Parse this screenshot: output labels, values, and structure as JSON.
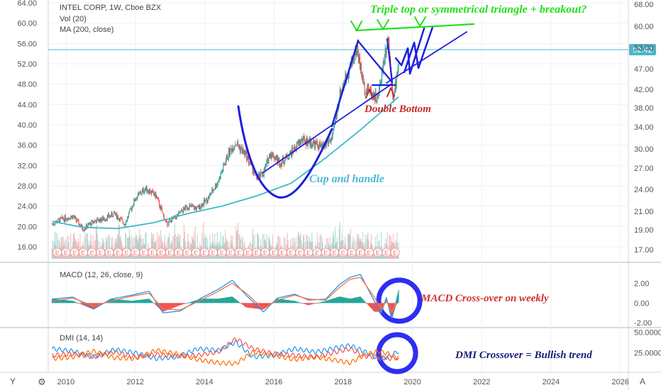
{
  "colors": {
    "up": "#26a69a",
    "down": "#ef5350",
    "ma": "#3fb8c8",
    "macd": "#2196f3",
    "signal": "#ff7043",
    "dmi_plus": "#2196f3",
    "dmi_minus": "#ff6d00",
    "dmi_adx": "#ef5350",
    "draw_blue": "#1c1fdc",
    "draw_green": "#22e01a",
    "cup_text": "#4db8d6",
    "double_bottom": "#c62828",
    "macd_anno": "#d32f2f",
    "dmi_anno": "#1a1a7a",
    "price_tag": "#4db6c8",
    "grid": "#eef0f3",
    "axis": "#d1d4dc"
  },
  "header": {
    "symbol": "INTEL CORP, 1W, Cboe BZX",
    "vol": "Vol (20)",
    "ma": "MA (200, close)"
  },
  "macd_panel": {
    "label": "MACD (12, 26, close, 9)"
  },
  "dmi_panel": {
    "label": "DMI (14, 14)"
  },
  "annotations": {
    "triple_top": "Triple top or symmetrical triangle + breakout?",
    "cup_handle": "Cup and handle",
    "double_bottom": "Double Bottom",
    "macd_cross": "MACD Cross-over on weekly",
    "dmi_cross": "DMI Crossover = Bullish trend"
  },
  "earnings_marker": "E",
  "corner": {
    "left": "Y",
    "settings": "⚙",
    "auto": "A"
  },
  "chart_data": [
    {
      "type": "line",
      "title": "INTEL CORP, 1W, Cboe BZX",
      "x_ticks": [
        "2010",
        "2012",
        "2014",
        "2016",
        "2018",
        "2020",
        "2022",
        "2024",
        "2026"
      ],
      "left_ticks": [
        "64.00",
        "60.00",
        "56.00",
        "52.00",
        "48.00",
        "44.00",
        "40.00",
        "36.00",
        "32.00",
        "28.00",
        "24.00",
        "20.00",
        "16.00"
      ],
      "right_ticks": [
        "68.00",
        "60.00",
        "53.00",
        "47.00",
        "42.00",
        "38.00",
        "34.00",
        "30.00",
        "27.00",
        "24.00",
        "21.00",
        "19.00",
        "17.00"
      ],
      "ylim": [
        13.5,
        65
      ],
      "last_price": "52.42",
      "series": [
        {
          "values_description": "weekly close",
          "x": [
            2009.6,
            2009.9,
            2010.2,
            2010.5,
            2010.8,
            2011.1,
            2011.4,
            2011.7,
            2012.0,
            2012.3,
            2012.6,
            2012.9,
            2013.2,
            2013.5,
            2013.8,
            2014.1,
            2014.4,
            2014.7,
            2014.9,
            2015.2,
            2015.5,
            2015.7,
            2015.9,
            2016.2,
            2016.5,
            2016.8,
            2017.1,
            2017.4,
            2017.7,
            2017.9,
            2018.2,
            2018.4,
            2018.6,
            2018.8,
            2019.0,
            2019.2,
            2019.3,
            2019.45,
            2019.6
          ],
          "close": [
            20.5,
            21.5,
            22.0,
            19.5,
            21.0,
            21.5,
            22.5,
            20.5,
            25.5,
            27.5,
            26.0,
            20.5,
            22.0,
            24.0,
            23.5,
            25.5,
            29.0,
            34.5,
            36.5,
            34.0,
            29.5,
            30.5,
            34.5,
            32.5,
            34.5,
            37.0,
            36.5,
            35.5,
            37.5,
            46.0,
            51.5,
            55.0,
            47.5,
            46.5,
            45.0,
            54.0,
            57.5,
            44.5,
            52.4
          ]
        },
        {
          "name": "MA (200, close)",
          "x": [
            2009.6,
            2010.5,
            2011.5,
            2012.5,
            2013.5,
            2014.5,
            2015.5,
            2016.5,
            2017.5,
            2018.5,
            2019.6
          ],
          "values": [
            21.0,
            19.8,
            19.6,
            20.7,
            22.5,
            24.0,
            26.0,
            28.5,
            33.5,
            39.0,
            45.5
          ]
        }
      ]
    },
    {
      "type": "line",
      "title": "MACD (12, 26, close, 9)",
      "right_ticks": [
        "2.00",
        "0.00",
        "-2.00"
      ],
      "ylim": [
        -2.2,
        3.4
      ],
      "series": [
        {
          "name": "MACD",
          "x": [
            2009.6,
            2010.2,
            2010.8,
            2011.3,
            2011.9,
            2012.4,
            2012.8,
            2013.3,
            2013.9,
            2014.4,
            2014.8,
            2015.2,
            2015.7,
            2016.1,
            2016.6,
            2017.0,
            2017.5,
            2017.9,
            2018.2,
            2018.5,
            2018.9,
            2019.1,
            2019.25,
            2019.4,
            2019.6
          ],
          "values": [
            0.4,
            0.6,
            -0.6,
            0.4,
            0.8,
            1.2,
            -1.0,
            -0.8,
            0.5,
            1.4,
            2.3,
            0.8,
            -0.9,
            0.5,
            0.9,
            0.3,
            0.4,
            1.9,
            2.6,
            2.9,
            0.2,
            -1.0,
            0.5,
            -1.6,
            0.8
          ]
        },
        {
          "name": "Signal",
          "x": [
            2009.6,
            2010.2,
            2010.8,
            2011.3,
            2011.9,
            2012.4,
            2012.8,
            2013.3,
            2013.9,
            2014.4,
            2014.8,
            2015.2,
            2015.7,
            2016.1,
            2016.6,
            2017.0,
            2017.5,
            2017.9,
            2018.2,
            2018.5,
            2018.9,
            2019.1,
            2019.25,
            2019.4,
            2019.6
          ],
          "values": [
            0.2,
            0.5,
            -0.3,
            0.2,
            0.7,
            1.0,
            -0.6,
            -0.7,
            0.3,
            1.2,
            2.0,
            1.0,
            -0.6,
            0.3,
            0.8,
            0.4,
            0.3,
            1.6,
            2.4,
            2.6,
            0.6,
            -0.6,
            0.2,
            -0.9,
            0.2
          ]
        }
      ]
    },
    {
      "type": "line",
      "title": "DMI (14, 14)",
      "right_ticks": [
        "50.0000",
        "25.0000"
      ],
      "ylim": [
        5,
        52
      ],
      "series": [
        {
          "name": "+DI",
          "x": [
            2009.6,
            2010.2,
            2010.8,
            2011.4,
            2012.0,
            2012.6,
            2013.2,
            2013.8,
            2014.4,
            2014.9,
            2015.4,
            2016.0,
            2016.6,
            2017.2,
            2017.8,
            2018.2,
            2018.6,
            2019.0,
            2019.3,
            2019.6
          ],
          "values": [
            30,
            27,
            20,
            29,
            25,
            18,
            20,
            30,
            28,
            38,
            20,
            22,
            30,
            26,
            31,
            34,
            27,
            18,
            20,
            27
          ]
        },
        {
          "name": "-DI",
          "x": [
            2009.6,
            2010.2,
            2010.8,
            2011.4,
            2012.0,
            2012.6,
            2013.2,
            2013.8,
            2014.4,
            2014.9,
            2015.4,
            2016.0,
            2016.6,
            2017.2,
            2017.8,
            2018.2,
            2018.6,
            2019.0,
            2019.3,
            2019.6
          ],
          "values": [
            18,
            20,
            27,
            19,
            18,
            28,
            24,
            17,
            13,
            12,
            26,
            22,
            17,
            20,
            16,
            13,
            22,
            27,
            24,
            18
          ]
        },
        {
          "name": "ADX",
          "x": [
            2009.6,
            2010.2,
            2010.8,
            2011.4,
            2012.0,
            2012.6,
            2013.2,
            2013.8,
            2014.4,
            2014.9,
            2015.4,
            2016.0,
            2016.6,
            2017.2,
            2017.8,
            2018.2,
            2018.6,
            2019.0,
            2019.3,
            2019.6
          ],
          "values": [
            22,
            24,
            20,
            26,
            20,
            23,
            21,
            22,
            26,
            42,
            30,
            24,
            22,
            20,
            26,
            30,
            21,
            20,
            18,
            19
          ]
        }
      ]
    }
  ]
}
